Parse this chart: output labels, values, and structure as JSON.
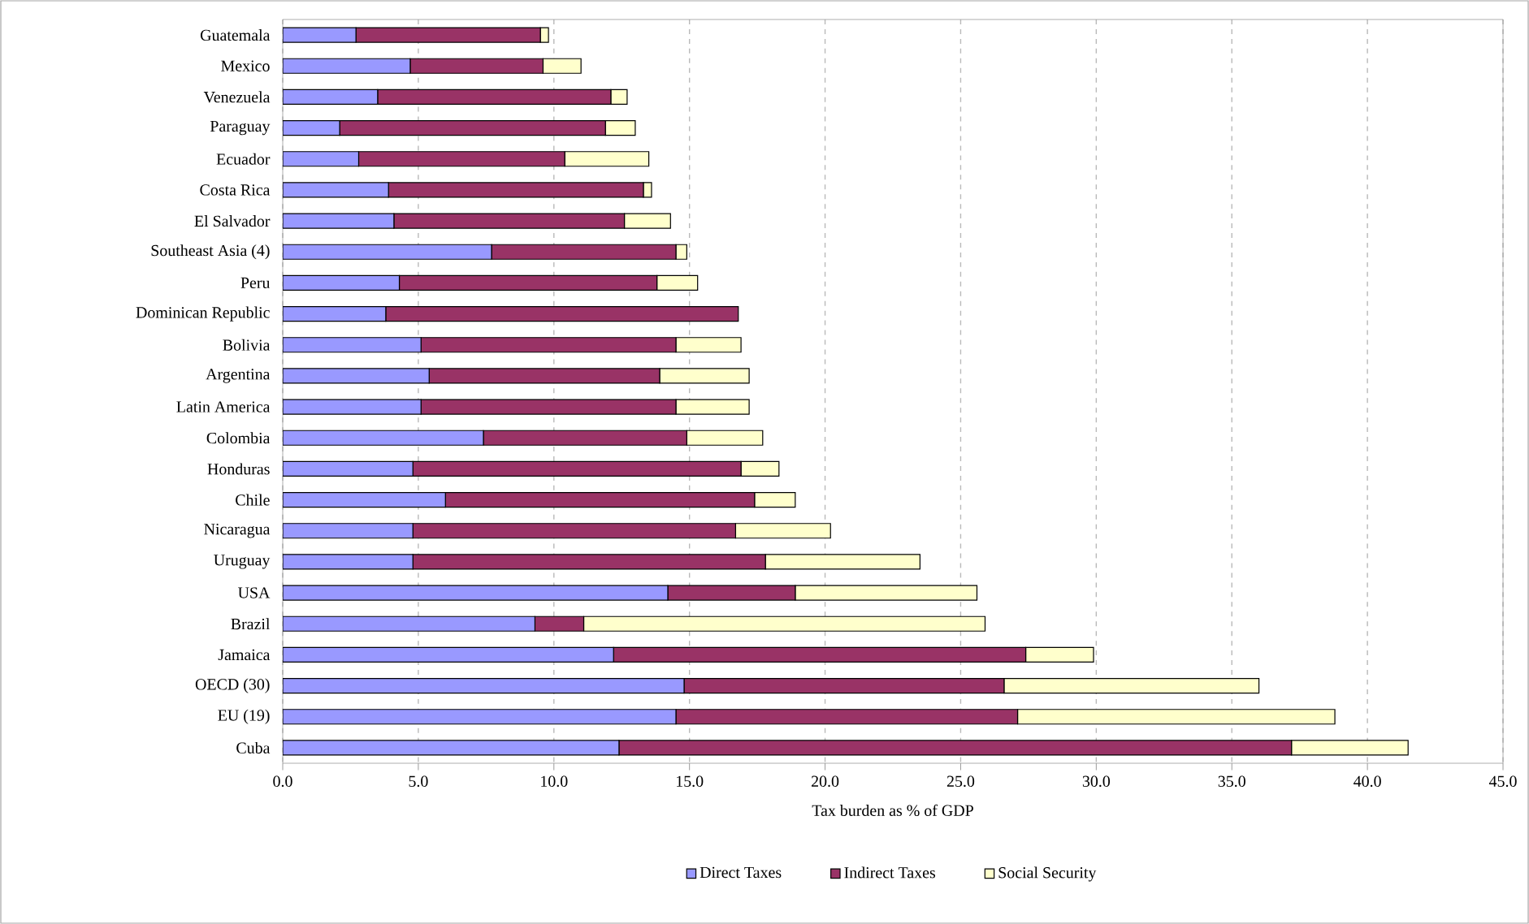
{
  "chart_data": {
    "type": "bar",
    "orientation": "horizontal",
    "stacked": true,
    "xlabel": "Tax burden as % of GDP",
    "categories": [
      "Guatemala",
      "Mexico",
      "Venezuela",
      "Paraguay",
      "Ecuador",
      "Costa Rica",
      "El Salvador",
      "Southeast Asia (4)",
      "Peru",
      "Dominican Republic",
      "Bolivia",
      "Argentina",
      "Latin America",
      "Colombia",
      "Honduras",
      "Chile",
      "Nicaragua",
      "Uruguay",
      "USA",
      "Brazil",
      "Jamaica",
      "OECD (30)",
      "EU (19)",
      "Cuba"
    ],
    "series": [
      {
        "name": "Direct Taxes",
        "color": "#9999ff",
        "values": [
          2.7,
          4.7,
          3.5,
          2.1,
          2.8,
          3.9,
          4.1,
          7.7,
          4.3,
          3.8,
          5.1,
          5.4,
          5.1,
          7.4,
          4.8,
          6.0,
          4.8,
          4.8,
          14.2,
          9.3,
          12.2,
          14.8,
          14.5,
          12.4
        ]
      },
      {
        "name": "Indirect Taxes",
        "color": "#993366",
        "values": [
          6.8,
          4.9,
          8.6,
          9.8,
          7.6,
          9.4,
          8.5,
          6.8,
          9.5,
          13.0,
          9.4,
          8.5,
          9.4,
          7.5,
          12.1,
          11.4,
          11.9,
          13.0,
          4.7,
          1.8,
          15.2,
          11.8,
          12.6,
          24.8
        ]
      },
      {
        "name": "Social Security",
        "color": "#ffffcc",
        "values": [
          0.3,
          1.4,
          0.6,
          1.1,
          3.1,
          0.3,
          1.7,
          0.4,
          1.5,
          0,
          2.4,
          3.3,
          2.7,
          2.8,
          1.4,
          1.5,
          3.5,
          5.7,
          6.7,
          14.8,
          2.5,
          9.4,
          11.7,
          4.3
        ]
      }
    ],
    "xlim": [
      0,
      45
    ],
    "xticks": [
      {
        "value": 0,
        "label": "0.0"
      },
      {
        "value": 5,
        "label": "5.0"
      },
      {
        "value": 10,
        "label": "10.0"
      },
      {
        "value": 15,
        "label": "15.0"
      },
      {
        "value": 20,
        "label": "20.0"
      },
      {
        "value": 25,
        "label": "25.0"
      },
      {
        "value": 30,
        "label": "30.0"
      },
      {
        "value": 35,
        "label": "35.0"
      },
      {
        "value": 40,
        "label": "40.0"
      },
      {
        "value": 45,
        "label": "45.0"
      }
    ],
    "grid": "x",
    "legend": "bottom"
  }
}
